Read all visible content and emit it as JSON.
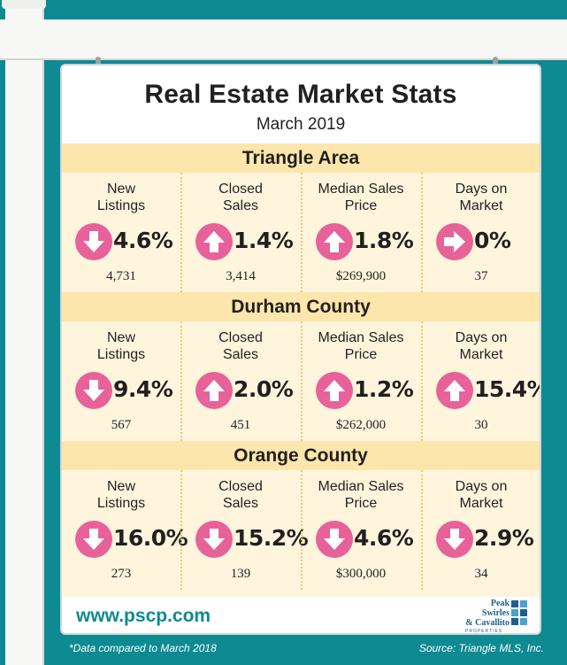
{
  "title": "Real Estate Market Stats",
  "subtitle": "March 2019",
  "regions": [
    {
      "name": "Triangle Area",
      "stats": [
        {
          "label_1": "New",
          "label_2": "Listings",
          "direction": "down",
          "pct": "4.6%",
          "count": "4,731"
        },
        {
          "label_1": "Closed",
          "label_2": "Sales",
          "direction": "up",
          "pct": "1.4%",
          "count": "3,414"
        },
        {
          "label_1": "Median Sales",
          "label_2": "Price",
          "direction": "up",
          "pct": "1.8%",
          "count": "$269,900"
        },
        {
          "label_1": "Days on",
          "label_2": "Market",
          "direction": "right",
          "pct": "0%",
          "count": "37"
        }
      ]
    },
    {
      "name": "Durham County",
      "stats": [
        {
          "label_1": "New",
          "label_2": "Listings",
          "direction": "down",
          "pct": "9.4%",
          "count": "567"
        },
        {
          "label_1": "Closed",
          "label_2": "Sales",
          "direction": "up",
          "pct": "2.0%",
          "count": "451"
        },
        {
          "label_1": "Median Sales",
          "label_2": "Price",
          "direction": "up",
          "pct": "1.2%",
          "count": "$262,000"
        },
        {
          "label_1": "Days on",
          "label_2": "Market",
          "direction": "up",
          "pct": "15.4%",
          "count": "30"
        }
      ]
    },
    {
      "name": "Orange County",
      "stats": [
        {
          "label_1": "New",
          "label_2": "Listings",
          "direction": "down",
          "pct": "16.0%",
          "count": "273"
        },
        {
          "label_1": "Closed",
          "label_2": "Sales",
          "direction": "down",
          "pct": "15.2%",
          "count": "139"
        },
        {
          "label_1": "Median Sales",
          "label_2": "Price",
          "direction": "down",
          "pct": "4.6%",
          "count": "$300,000"
        },
        {
          "label_1": "Days on",
          "label_2": "Market",
          "direction": "down",
          "pct": "2.9%",
          "count": "34"
        }
      ]
    }
  ],
  "website": "www.pscp.com",
  "logo": {
    "line_1": "Peak",
    "line_2": "Swirles",
    "line_3": "& Cavallito",
    "tagline": "PROPERTIES"
  },
  "footnote": "*Data compared to March 2018",
  "source": "Source: Triangle MLS, Inc.",
  "colors": {
    "background": "#0e8a92",
    "arrow": "#e8629a",
    "band": "#fde6ab",
    "panel": "#fff5dd",
    "logo": "#1e5f8f"
  }
}
